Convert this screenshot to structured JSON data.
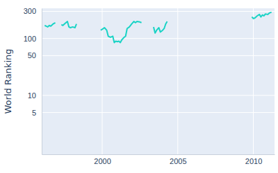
{
  "chart_data": {
    "type": "line",
    "y_label": "World Ranking",
    "x": [
      1996.2,
      1996.3,
      1996.4,
      1996.5,
      1996.6,
      1996.75,
      1996.9,
      1997.0,
      1997.3,
      1997.4,
      1997.55,
      1997.7,
      1997.8,
      1997.9,
      1998.05,
      1998.2,
      1998.3,
      1998.5,
      1999.9,
      2000.0,
      2000.15,
      2000.3,
      2000.4,
      2000.55,
      2000.7,
      2000.8,
      2000.9,
      2001.0,
      2001.1,
      2001.2,
      2001.3,
      2001.45,
      2001.55,
      2001.65,
      2001.8,
      2001.95,
      2002.1,
      2002.2,
      2002.3,
      2002.5,
      2002.6,
      2002.8,
      2003.4,
      2003.5,
      2003.6,
      2003.75,
      2003.85,
      2004.0,
      2004.1,
      2004.2,
      2004.3,
      2004.5,
      2009.9,
      2010.0,
      2010.1,
      2010.25,
      2010.4,
      2010.5,
      2010.6,
      2010.7,
      2010.8,
      2010.95,
      2011.05,
      2011.2
    ],
    "series": [
      {
        "name": "World Ranking",
        "color": "#19d3c5",
        "values": [
          170,
          165,
          160,
          170,
          165,
          180,
          190,
          null,
          175,
          170,
          185,
          200,
          160,
          155,
          160,
          155,
          180,
          null,
          140,
          145,
          155,
          140,
          110,
          105,
          110,
          85,
          90,
          88,
          90,
          85,
          95,
          105,
          110,
          150,
          160,
          180,
          200,
          190,
          200,
          195,
          190,
          null,
          160,
          125,
          140,
          155,
          130,
          140,
          150,
          180,
          200,
          null,
          240,
          225,
          230,
          250,
          265,
          240,
          260,
          250,
          270,
          265,
          280,
          290
        ]
      }
    ],
    "xlim": [
      1996.0,
      2011.4
    ],
    "xticks": [
      2000,
      2005,
      2010
    ],
    "ylim": [
      0.92,
      340
    ],
    "yticks": [
      5,
      10,
      50,
      100,
      300
    ],
    "log": "y",
    "grid": true
  }
}
